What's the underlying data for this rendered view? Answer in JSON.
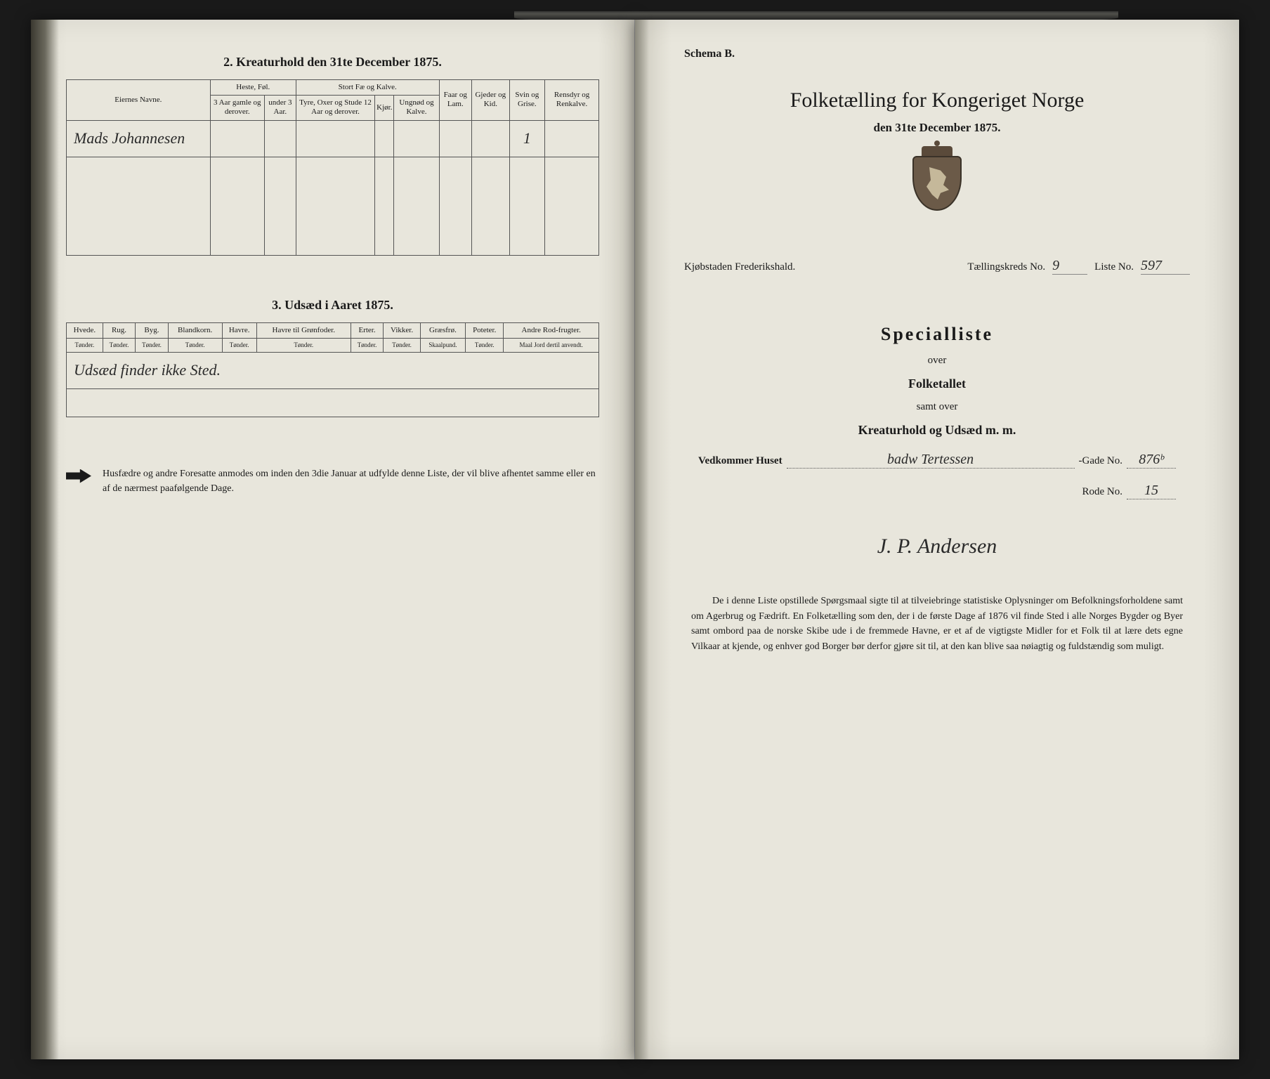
{
  "left": {
    "section2": {
      "title": "2. Kreaturhold den 31te December 1875.",
      "owners_col": "Eiernes Navne.",
      "groups": {
        "heste": "Heste, Føl.",
        "heste_sub": [
          "3 Aar gamle og derover.",
          "under 3 Aar."
        ],
        "stort": "Stort Fæ og Kalve.",
        "stort_sub": [
          "Tyre, Oxer og Stude 12 Aar og derover.",
          "Kjør.",
          "Ungnød og Kalve."
        ],
        "faar": "Faar og Lam.",
        "gjeder": "Gjeder og Kid.",
        "svin": "Svin og Grise.",
        "rensdyr": "Rensdyr og Renkalve."
      },
      "row1_name": "Mads Johannesen",
      "row1_svin": "1"
    },
    "section3": {
      "title": "3. Udsæd i Aaret 1875.",
      "cols": [
        {
          "h": "Hvede.",
          "u": "Tønder."
        },
        {
          "h": "Rug.",
          "u": "Tønder."
        },
        {
          "h": "Byg.",
          "u": "Tønder."
        },
        {
          "h": "Blandkorn.",
          "u": "Tønder."
        },
        {
          "h": "Havre.",
          "u": "Tønder."
        },
        {
          "h": "Havre til Grønfoder.",
          "u": "Tønder."
        },
        {
          "h": "Erter.",
          "u": "Tønder."
        },
        {
          "h": "Vikker.",
          "u": "Tønder."
        },
        {
          "h": "Græsfrø.",
          "u": "Skaalpund."
        },
        {
          "h": "Poteter.",
          "u": "Tønder."
        },
        {
          "h": "Andre Rod-frugter.",
          "u": "Maal Jord dertil anvendt."
        }
      ],
      "row_note": "Udsæd finder ikke Sted."
    },
    "footer": "Husfædre og andre Foresatte anmodes om inden den 3die Januar at udfylde denne Liste, der vil blive afhentet samme eller en af de nærmest paafølgende Dage."
  },
  "right": {
    "schema": "Schema B.",
    "title": "Folketælling for Kongeriget Norge",
    "subtitle": "den 31te December 1875.",
    "meta": {
      "city_label": "Kjøbstaden Frederikshald.",
      "kreds_label": "Tællingskreds No.",
      "kreds_value": "9",
      "liste_label": "Liste No.",
      "liste_value": "597"
    },
    "special": {
      "h": "Specialliste",
      "over": "over",
      "a": "Folketallet",
      "samt": "samt over",
      "b": "Kreaturhold og Udsæd m. m."
    },
    "house": {
      "label": "Vedkommer Huset",
      "value": "badw Tertessen",
      "gade_label": "-Gade No.",
      "gade_value": "876ᵇ",
      "rode_label": "Rode No.",
      "rode_value": "15"
    },
    "signature": "J. P. Andersen",
    "paragraph": "De i denne Liste opstillede Spørgsmaal sigte til at tilveiebringe statistiske Oplysninger om Befolkningsforholdene samt om Agerbrug og Fædrift. En Folketælling som den, der i de første Dage af 1876 vil finde Sted i alle Norges Bygder og Byer samt ombord paa de norske Skibe ude i de fremmede Havne, er et af de vigtigste Midler for et Folk til at lære dets egne Vilkaar at kjende, og enhver god Borger bør derfor gjøre sit til, at den kan blive saa nøiagtig og fuldstændig som muligt."
  }
}
